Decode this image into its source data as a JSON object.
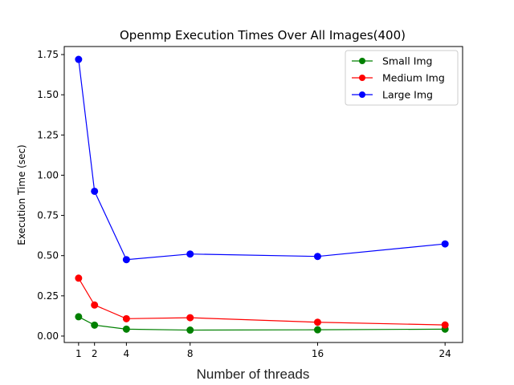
{
  "chart_data": {
    "type": "line",
    "title": "Openmp Execution Times Over All Images(400)",
    "xlabel": "Number of threads",
    "ylabel": "Execution Time (sec)",
    "x": [
      1,
      2,
      4,
      8,
      16,
      24
    ],
    "x_ticks": [
      1,
      2,
      4,
      8,
      16,
      24
    ],
    "y_ticks": [
      "0.00",
      "0.25",
      "0.50",
      "0.75",
      "1.00",
      "1.25",
      "1.50",
      "1.75"
    ],
    "xlim": [
      0.1,
      25.1
    ],
    "ylim": [
      -0.04,
      1.8
    ],
    "grid": false,
    "legend_position": "top-right",
    "series": [
      {
        "name": "Small Img",
        "color": "#008000",
        "values": [
          0.12,
          0.068,
          0.043,
          0.037,
          0.039,
          0.043
        ]
      },
      {
        "name": "Medium Img",
        "color": "#ff0000",
        "values": [
          0.36,
          0.193,
          0.108,
          0.114,
          0.086,
          0.069
        ]
      },
      {
        "name": "Large Img",
        "color": "#0000ff",
        "values": [
          1.72,
          0.9,
          0.475,
          0.51,
          0.495,
          0.573
        ]
      }
    ]
  }
}
